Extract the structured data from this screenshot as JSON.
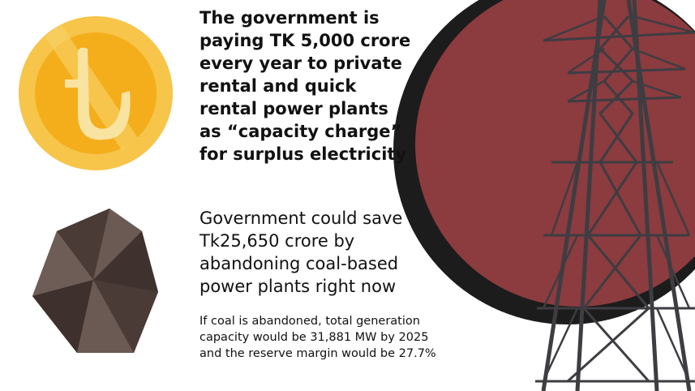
{
  "blocks": [
    {
      "lines": [
        "The government is",
        "paying TK 5,000 crore",
        "every year to private",
        "rental and quick",
        "rental power plants",
        "as “capacity charge”",
        "for surplus electricity"
      ]
    },
    {
      "lines": [
        "Government could save",
        "Tk25,650 crore by",
        "abandoning coal-based",
        "power plants right now"
      ]
    },
    {
      "lines": [
        "If coal is abandoned, total generation",
        "capacity would be 31,881 MW by 2025",
        "and the reserve margin would be 27.7%"
      ]
    }
  ]
}
